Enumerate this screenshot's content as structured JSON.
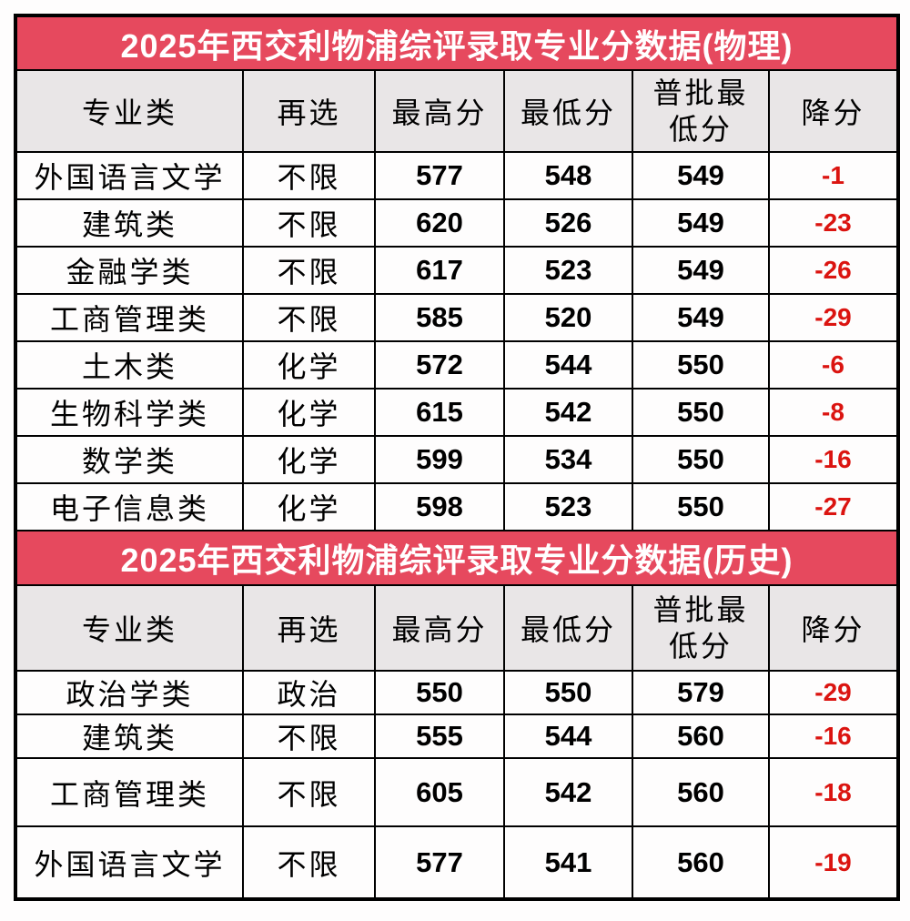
{
  "colors": {
    "title_bg": "#E6495E",
    "title_text": "#FFFFFF",
    "header_bg": "#E9E6E7",
    "grid_border": "#000000",
    "score_text": "#000000",
    "reduction_text": "#DB1410",
    "page_bg": "#FEFDFD"
  },
  "chart_data": [
    {
      "type": "table",
      "title": "2025年西交利物浦综评录取专业分数据(物理)",
      "columns": [
        "专业类",
        "再选",
        "最高分",
        "最低分",
        "普批最低分",
        "降分"
      ],
      "rows": [
        [
          "外国语言文学",
          "不限",
          "577",
          "548",
          "549",
          "-1"
        ],
        [
          "建筑类",
          "不限",
          "620",
          "526",
          "549",
          "-23"
        ],
        [
          "金融学类",
          "不限",
          "617",
          "523",
          "549",
          "-26"
        ],
        [
          "工商管理类",
          "不限",
          "585",
          "520",
          "549",
          "-29"
        ],
        [
          "土木类",
          "化学",
          "572",
          "544",
          "550",
          "-6"
        ],
        [
          "生物科学类",
          "化学",
          "615",
          "542",
          "550",
          "-8"
        ],
        [
          "数学类",
          "化学",
          "599",
          "534",
          "550",
          "-16"
        ],
        [
          "电子信息类",
          "化学",
          "598",
          "523",
          "550",
          "-27"
        ]
      ]
    },
    {
      "type": "table",
      "title": "2025年西交利物浦综评录取专业分数据(历史)",
      "columns": [
        "专业类",
        "再选",
        "最高分",
        "最低分",
        "普批最低分",
        "降分"
      ],
      "rows": [
        [
          "政治学类",
          "政治",
          "550",
          "550",
          "579",
          "-29"
        ],
        [
          "建筑类",
          "不限",
          "555",
          "544",
          "560",
          "-16"
        ],
        [
          "工商管理类",
          "不限",
          "605",
          "542",
          "560",
          "-18"
        ],
        [
          "外国语言文学",
          "不限",
          "577",
          "541",
          "560",
          "-19"
        ]
      ]
    }
  ]
}
